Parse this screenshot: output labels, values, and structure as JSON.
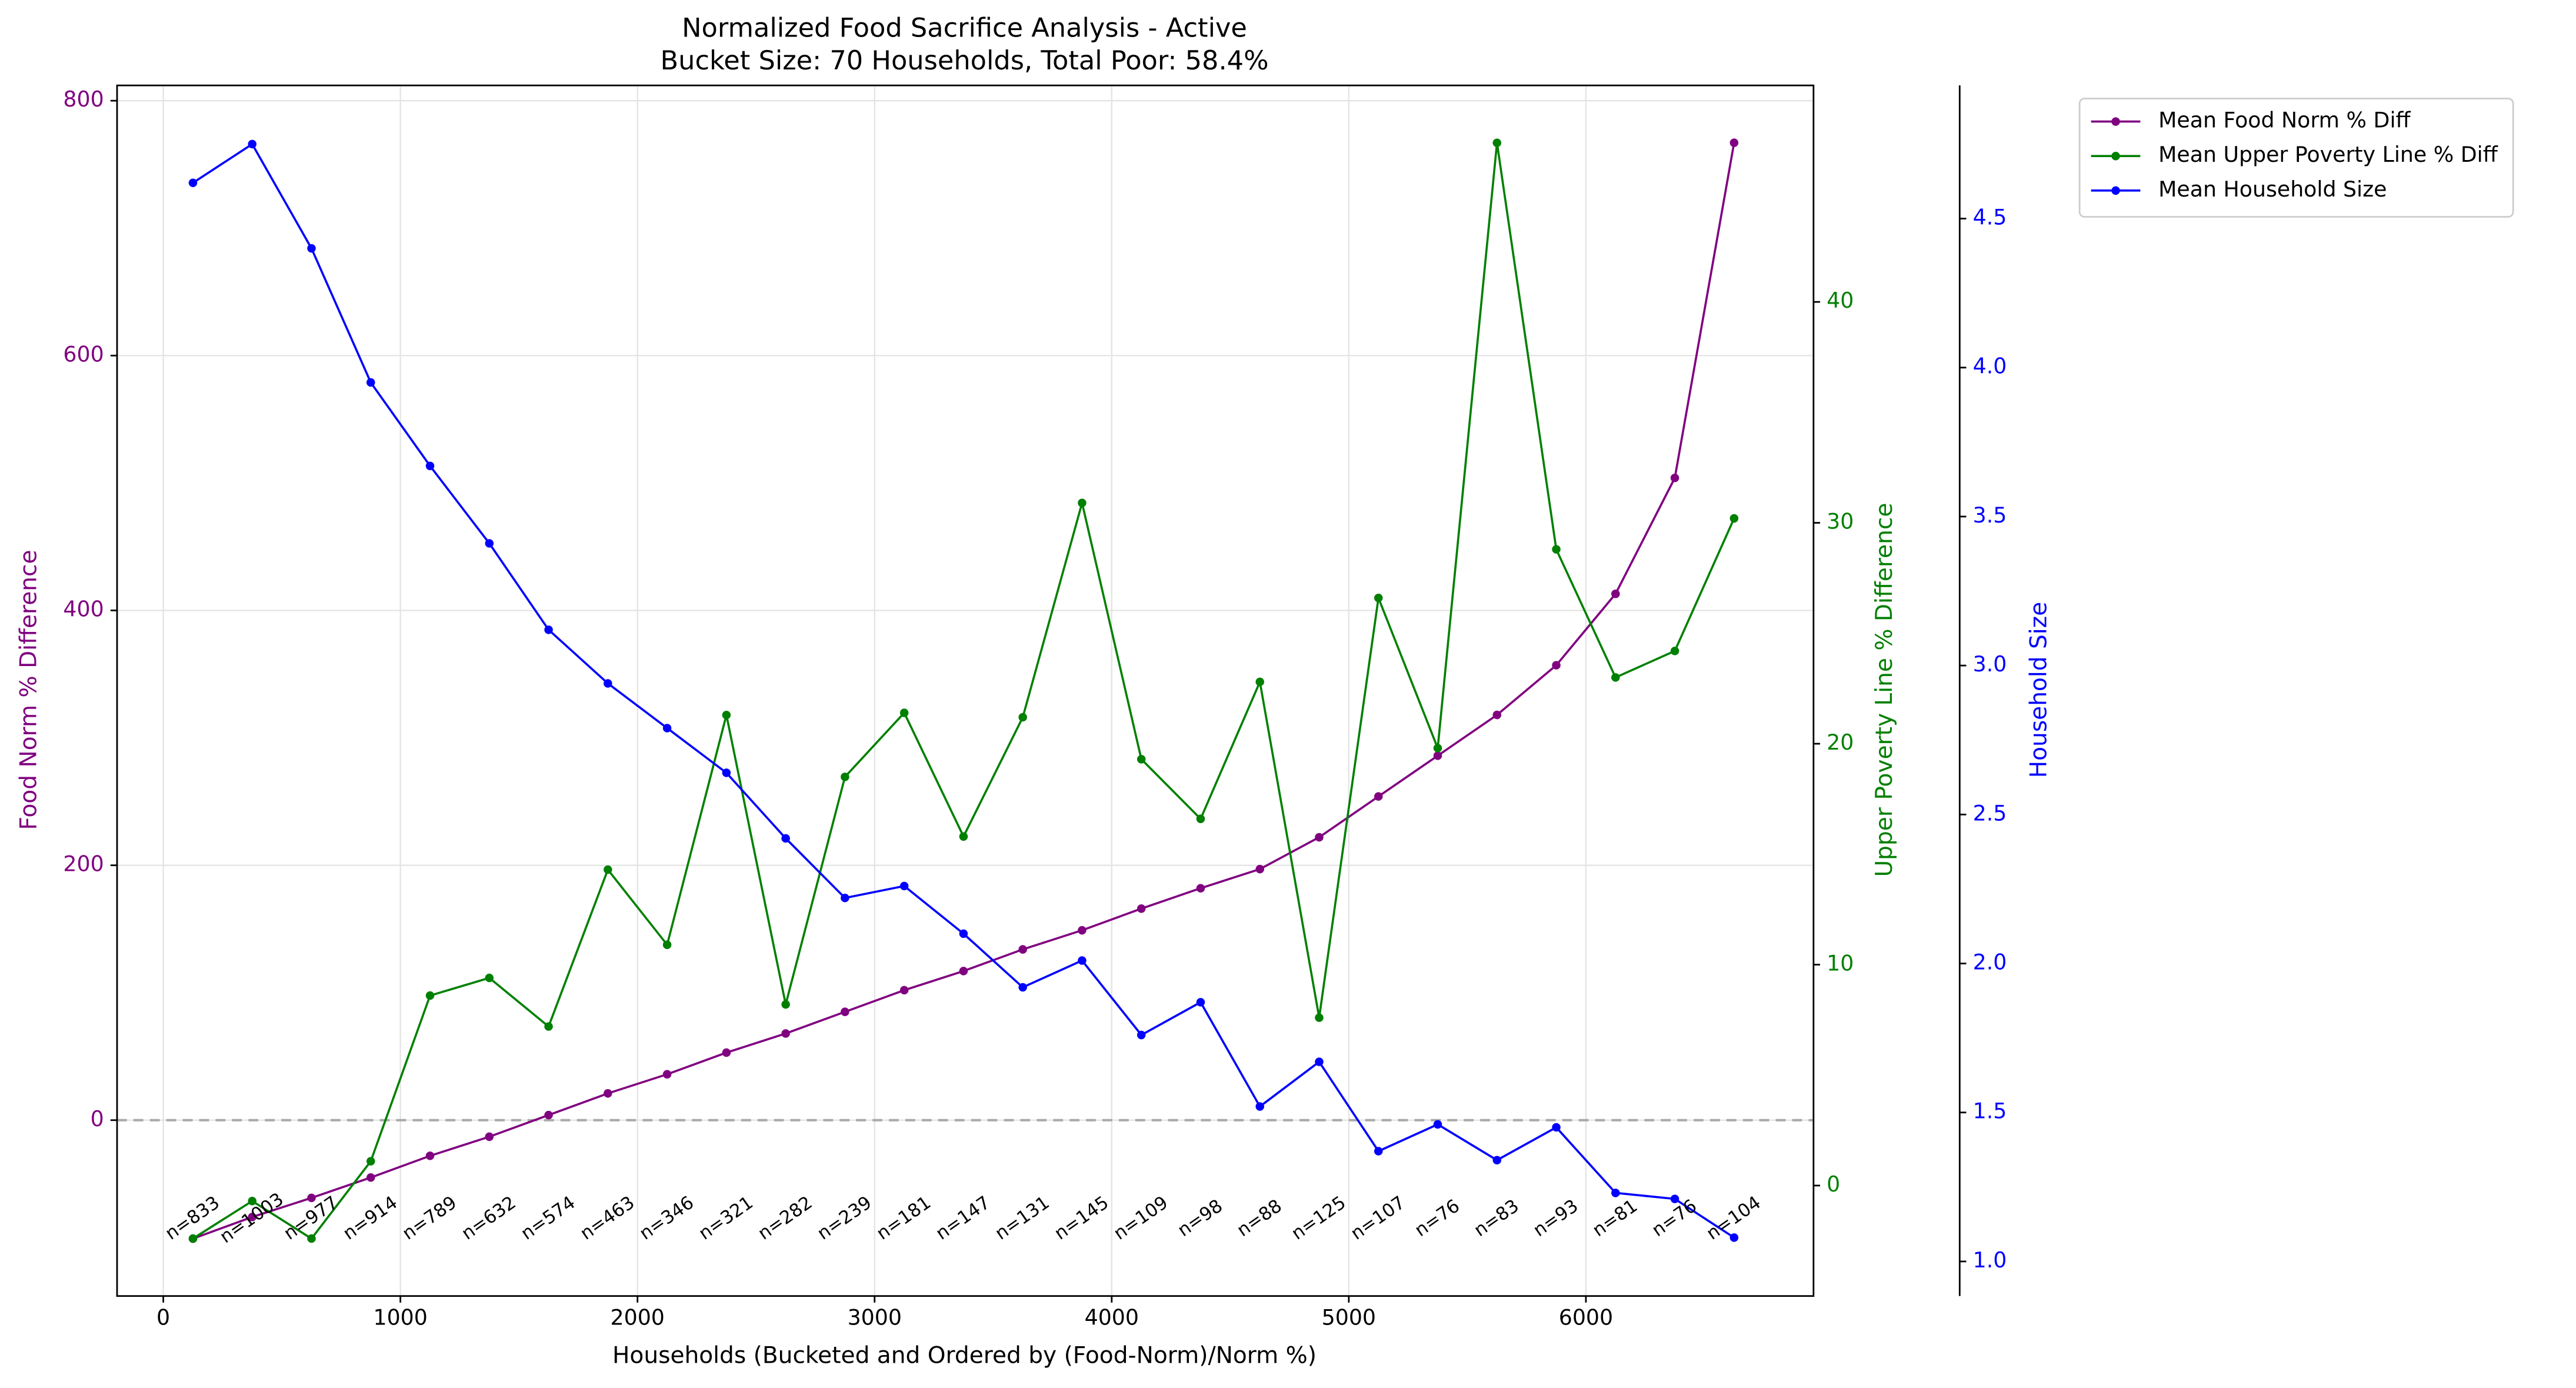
{
  "chart_data": {
    "type": "line",
    "title": "Normalized Food Sacrifice Analysis - Active",
    "subtitle": "Bucket Size: 70 Households, Total Poor: 58.4%",
    "x_label": "Households (Bucketed and Ordered by (Food-Norm)/Norm %)",
    "y_label": "Food Norm % Difference",
    "y2_label": "Upper Poverty Line % Difference",
    "y3_label": "Household Size",
    "x": [
      125,
      375,
      625,
      875,
      1125,
      1375,
      1625,
      1875,
      2125,
      2375,
      2625,
      2875,
      3125,
      3375,
      3625,
      3875,
      4125,
      4375,
      4625,
      4875,
      5125,
      5375,
      5625,
      5875,
      6125,
      6375,
      6625
    ],
    "series": [
      {
        "name": "Mean Food Norm % Diff",
        "color": "#800080",
        "axis": "y",
        "values": [
          -93,
          -76,
          -61,
          -45,
          -28,
          -13,
          4,
          21,
          36,
          53,
          68,
          85,
          102,
          117,
          134,
          149,
          166,
          182,
          197,
          222,
          254,
          286,
          318,
          357,
          413,
          504,
          767
        ]
      },
      {
        "name": "Mean Upper Poverty Line % Diff",
        "color": "#008000",
        "axis": "y2",
        "values": [
          -2.4,
          -0.7,
          -2.4,
          1.1,
          8.6,
          9.4,
          7.2,
          14.3,
          10.9,
          21.3,
          8.2,
          18.5,
          21.4,
          15.8,
          21.2,
          30.9,
          19.3,
          16.6,
          22.8,
          7.6,
          26.6,
          19.8,
          47.2,
          28.8,
          23.0,
          24.2,
          30.2
        ]
      },
      {
        "name": "Mean Household Size",
        "color": "#0000ff",
        "axis": "y3",
        "values": [
          4.62,
          4.75,
          4.4,
          3.95,
          3.67,
          3.41,
          3.12,
          2.94,
          2.79,
          2.64,
          2.42,
          2.22,
          2.26,
          2.1,
          1.92,
          2.01,
          1.76,
          1.87,
          1.52,
          1.67,
          1.37,
          1.46,
          1.34,
          1.45,
          1.23,
          1.21,
          1.08
        ]
      }
    ],
    "sample_labels": [
      "n=833",
      "n=1003",
      "n=977",
      "n=914",
      "n=789",
      "n=632",
      "n=574",
      "n=463",
      "n=346",
      "n=321",
      "n=282",
      "n=239",
      "n=181",
      "n=147",
      "n=131",
      "n=145",
      "n=109",
      "n=98",
      "n=88",
      "n=125",
      "n=107",
      "n=76",
      "n=83",
      "n=93",
      "n=81",
      "n=76",
      "n=104"
    ],
    "hline": 0,
    "xlim": [
      -195,
      6960
    ],
    "xticks": [
      0,
      1000,
      2000,
      3000,
      4000,
      5000,
      6000
    ],
    "ylim": [
      -138,
      812
    ],
    "yticks": [
      0,
      200,
      400,
      600,
      800
    ],
    "y2lim": [
      -5,
      49.8
    ],
    "y2ticks": [
      0,
      10,
      20,
      30,
      40
    ],
    "y3lim": [
      0.884,
      4.947
    ],
    "y3ticks": [
      {
        "value": 1.0,
        "label": "1.0"
      },
      {
        "value": 1.5,
        "label": "1.5"
      },
      {
        "value": 2.0,
        "label": "2.0"
      },
      {
        "value": 2.5,
        "label": "2.5"
      },
      {
        "value": 3.0,
        "label": "3.0"
      },
      {
        "value": 3.5,
        "label": "3.5"
      },
      {
        "value": 4.0,
        "label": "4.0"
      },
      {
        "value": 4.5,
        "label": "4.5"
      }
    ],
    "grid": true,
    "legend": "upper right outside"
  }
}
